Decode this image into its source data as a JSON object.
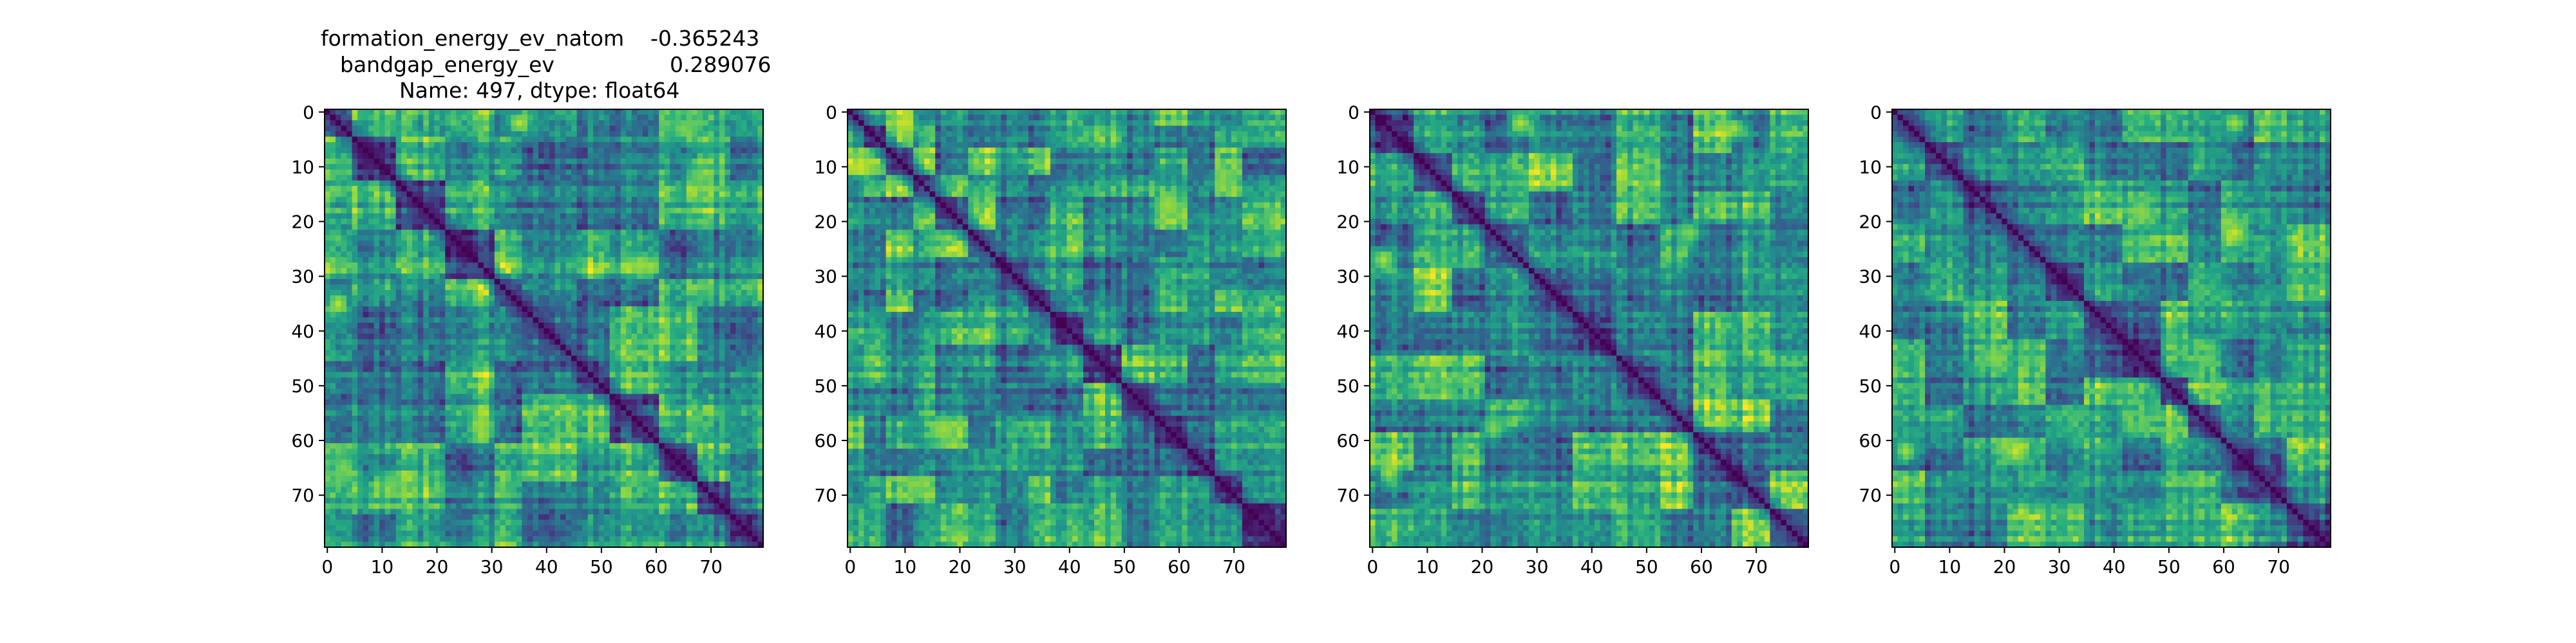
{
  "chart_data": [
    {
      "type": "heatmap",
      "title_lines": [
        [
          "formation_energy_ev_natom",
          "-0.365243"
        ],
        [
          "bandgap_energy_ev",
          "0.289076"
        ],
        [
          "Name: 497, dtype: float64"
        ]
      ],
      "colormap": "viridis",
      "size": 80,
      "x_ticks": [
        "0",
        "10",
        "20",
        "30",
        "40",
        "50",
        "60",
        "70"
      ],
      "y_ticks": [
        "0",
        "10",
        "20",
        "30",
        "40",
        "50",
        "60",
        "70"
      ],
      "block_boundaries": [
        5,
        13,
        22,
        31,
        36,
        46,
        52,
        61,
        68,
        74
      ],
      "hotspots": [
        {
          "row": 35,
          "col": 2,
          "value": 0.9
        },
        {
          "row": 2,
          "col": 35,
          "value": 0.9
        },
        {
          "row": 57,
          "col": 28,
          "value": 0.85
        },
        {
          "row": 28,
          "col": 57,
          "value": 0.85
        },
        {
          "row": 3,
          "col": 65,
          "value": 0.8
        },
        {
          "row": 65,
          "col": 3,
          "value": 0.8
        },
        {
          "row": 68,
          "col": 12,
          "value": 0.78
        },
        {
          "row": 12,
          "col": 68,
          "value": 0.78
        }
      ]
    },
    {
      "type": "heatmap",
      "title_lines": [],
      "colormap": "viridis",
      "size": 80,
      "x_ticks": [
        "0",
        "10",
        "20",
        "30",
        "40",
        "50",
        "60",
        "70"
      ],
      "y_ticks": [
        "0",
        "10",
        "20",
        "30",
        "40",
        "50",
        "60",
        "70"
      ],
      "block_boundaries": [
        3,
        7,
        12,
        16,
        22,
        27,
        33,
        37,
        43,
        50,
        56,
        62,
        67,
        72
      ],
      "hotspots": [
        {
          "row": 2,
          "col": 10,
          "value": 0.92
        },
        {
          "row": 10,
          "col": 2,
          "value": 0.92
        },
        {
          "row": 17,
          "col": 58,
          "value": 0.85
        },
        {
          "row": 58,
          "col": 17,
          "value": 0.85
        },
        {
          "row": 68,
          "col": 12,
          "value": 0.82
        },
        {
          "row": 12,
          "col": 68,
          "value": 0.82
        }
      ]
    },
    {
      "type": "heatmap",
      "title_lines": [],
      "colormap": "viridis",
      "size": 80,
      "x_ticks": [
        "0",
        "10",
        "20",
        "30",
        "40",
        "50",
        "60",
        "70"
      ],
      "y_ticks": [
        "0",
        "10",
        "20",
        "30",
        "40",
        "50",
        "60",
        "70"
      ],
      "block_boundaries": [
        8,
        15,
        21,
        29,
        37,
        45,
        53,
        59,
        66,
        73
      ],
      "hotspots": [
        {
          "row": 2,
          "col": 27,
          "value": 0.88
        },
        {
          "row": 27,
          "col": 2,
          "value": 0.88
        },
        {
          "row": 3,
          "col": 66,
          "value": 0.86
        },
        {
          "row": 66,
          "col": 3,
          "value": 0.86
        },
        {
          "row": 58,
          "col": 22,
          "value": 0.8
        },
        {
          "row": 22,
          "col": 58,
          "value": 0.8
        }
      ]
    },
    {
      "type": "heatmap",
      "title_lines": [],
      "colormap": "viridis",
      "size": 80,
      "x_ticks": [
        "0",
        "10",
        "20",
        "30",
        "40",
        "50",
        "60",
        "70"
      ],
      "y_ticks": [
        "0",
        "10",
        "20",
        "30",
        "40",
        "50",
        "60",
        "70"
      ],
      "block_boundaries": [
        6,
        13,
        21,
        28,
        35,
        42,
        49,
        54,
        60,
        66,
        72
      ],
      "hotspots": [
        {
          "row": 22,
          "col": 62,
          "value": 0.92
        },
        {
          "row": 62,
          "col": 22,
          "value": 0.92
        },
        {
          "row": 2,
          "col": 62,
          "value": 0.86
        },
        {
          "row": 62,
          "col": 2,
          "value": 0.86
        },
        {
          "row": 45,
          "col": 18,
          "value": 0.82
        },
        {
          "row": 18,
          "col": 45,
          "value": 0.82
        }
      ]
    }
  ]
}
